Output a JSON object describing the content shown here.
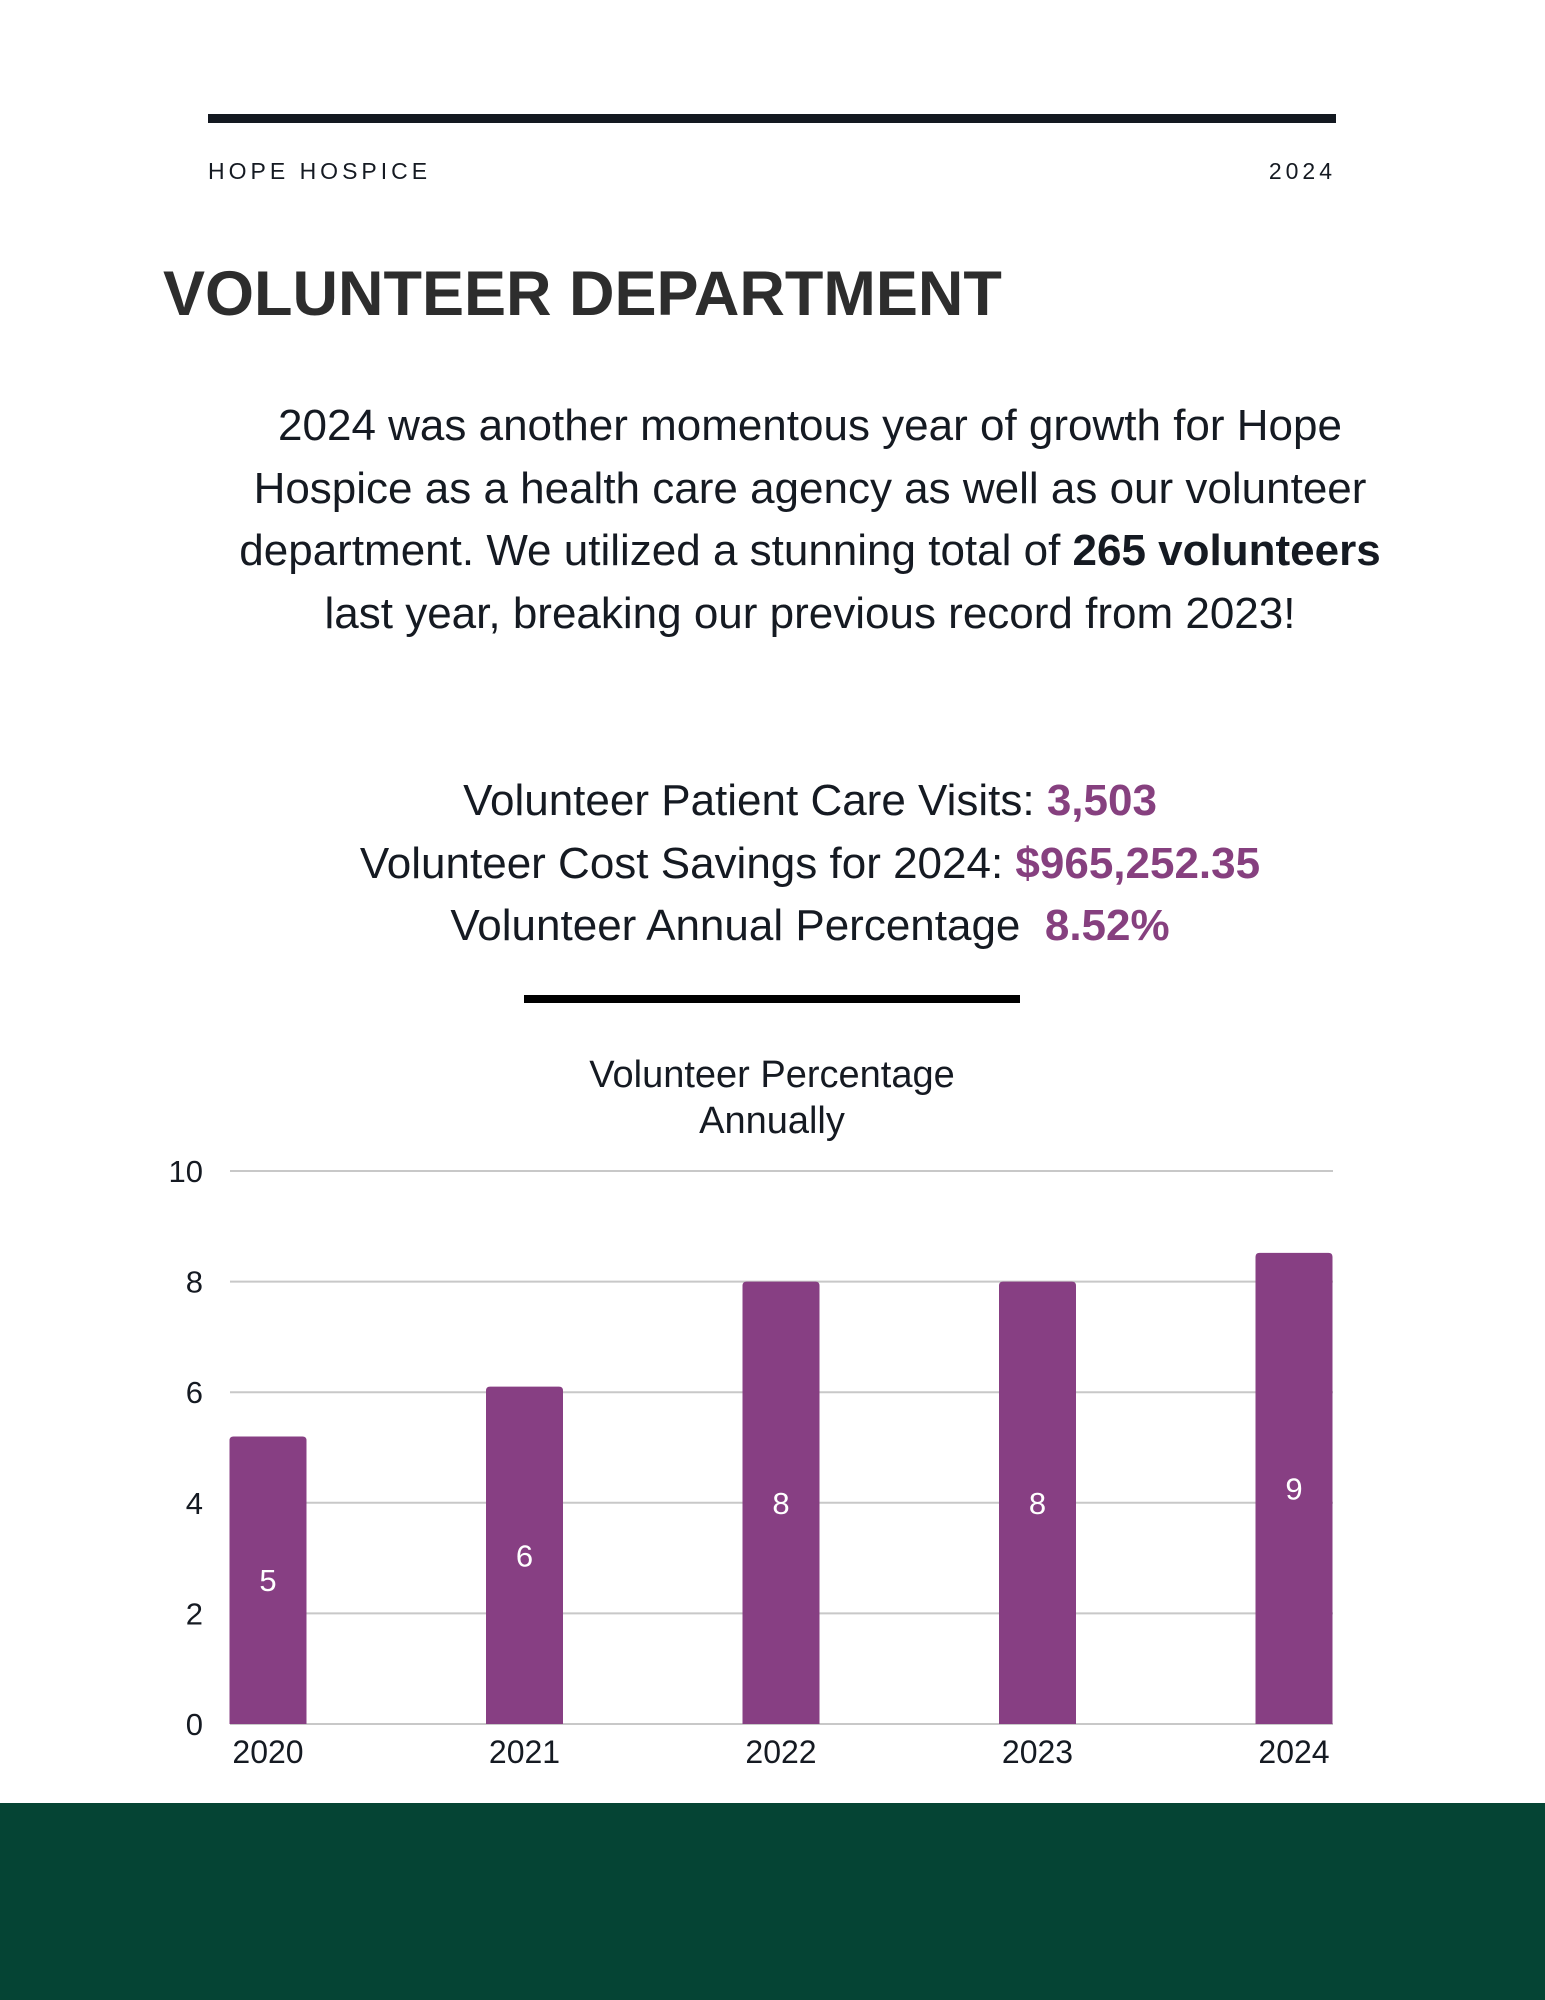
{
  "header": {
    "organization": "HOPE HOSPICE",
    "year": "2024"
  },
  "page_title": "VOLUNTEER DEPARTMENT",
  "intro": {
    "before_bold": "2024 was another momentous year of growth for Hope Hospice as a health care agency as well as our volunteer department.  We utilized a stunning total of ",
    "bold": "265 volunteers",
    "after_bold": " last year, breaking our previous record from 2023!"
  },
  "stats": [
    {
      "label": "Volunteer Patient Care Visits: ",
      "value": "3,503"
    },
    {
      "label": "Volunteer Cost Savings for 2024: ",
      "value": "$965,252.35"
    },
    {
      "label": "Volunteer Annual Percentage  ",
      "value": "8.52%"
    }
  ],
  "colors": {
    "accent": "#86407f",
    "bar": "#873f83",
    "footer": "#054434",
    "text": "#151a22"
  },
  "chart_data": {
    "type": "bar",
    "title": "Volunteer Percentage Annually",
    "title_lines": [
      "Volunteer Percentage",
      "Annually"
    ],
    "categories": [
      "2020",
      "2021",
      "2022",
      "2023",
      "2024"
    ],
    "values": [
      5.2,
      6.1,
      8.0,
      8.0,
      8.52
    ],
    "data_labels": [
      "5",
      "6",
      "8",
      "8",
      "9"
    ],
    "xlabel": "",
    "ylabel": "",
    "ylim": [
      0,
      10
    ],
    "yticks": [
      0,
      2,
      4,
      6,
      8,
      10
    ],
    "grid": true,
    "legend": "none"
  }
}
